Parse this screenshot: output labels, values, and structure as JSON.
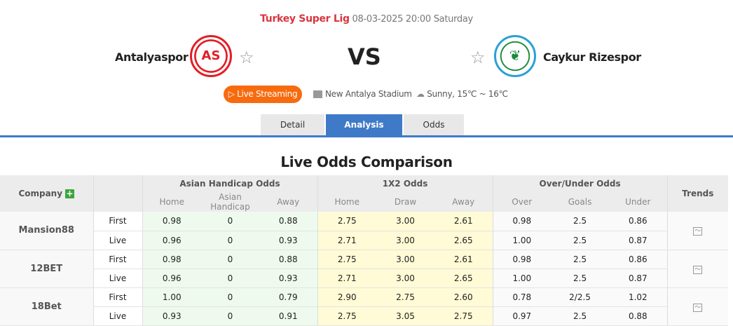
{
  "match": {
    "league": "Turkey Super Lig",
    "datetime": "08-03-2025 20:00 Saturday",
    "home": "Antalyaspor",
    "away": "Caykur Rizespor",
    "vs": "VS",
    "live_label": "Live Streaming",
    "stadium": "New Antalya Stadium",
    "weather": "Sunny, 15℃ ~ 16℃",
    "home_color": "#e21e26",
    "away_color": "#2aa0d8"
  },
  "tabs": [
    {
      "label": "Detail"
    },
    {
      "label": "Analysis",
      "active": true
    },
    {
      "label": "Odds"
    }
  ],
  "section_title": "Live Odds Comparison",
  "table": {
    "headers": {
      "company": "Company",
      "ah": "Asian Handicap Odds",
      "x2": "1X2 Odds",
      "ou": "Over/Under Odds",
      "trends": "Trends"
    },
    "sub": [
      "Home",
      "Asian Handicap",
      "Away",
      "Home",
      "Draw",
      "Away",
      "Over",
      "Goals",
      "Under"
    ],
    "rows": [
      {
        "company": "Mansion88",
        "first": {
          "label": "First",
          "v": [
            "0.98",
            "0",
            "0.88",
            "2.75",
            "3.00",
            "2.61",
            "0.98",
            "2.5",
            "0.86"
          ]
        },
        "live": {
          "label": "Live",
          "v": [
            "0.96",
            "0",
            "0.93",
            "2.71",
            "3.00",
            "2.65",
            "1.00",
            "2.5",
            "0.87"
          ]
        }
      },
      {
        "company": "12BET",
        "first": {
          "label": "First",
          "v": [
            "0.98",
            "0",
            "0.88",
            "2.75",
            "3.00",
            "2.61",
            "0.98",
            "2.5",
            "0.86"
          ]
        },
        "live": {
          "label": "Live",
          "v": [
            "0.96",
            "0",
            "0.93",
            "2.71",
            "3.00",
            "2.65",
            "1.00",
            "2.5",
            "0.87"
          ]
        }
      },
      {
        "company": "18Bet",
        "first": {
          "label": "First",
          "v": [
            "1.00",
            "0",
            "0.79",
            "2.90",
            "2.75",
            "2.60",
            "0.78",
            "2/2.5",
            "1.02"
          ]
        },
        "live": {
          "label": "Live",
          "v": [
            "0.93",
            "0",
            "0.91",
            "2.75",
            "3.05",
            "2.75",
            "0.97",
            "2.5",
            "0.88"
          ]
        }
      }
    ]
  }
}
